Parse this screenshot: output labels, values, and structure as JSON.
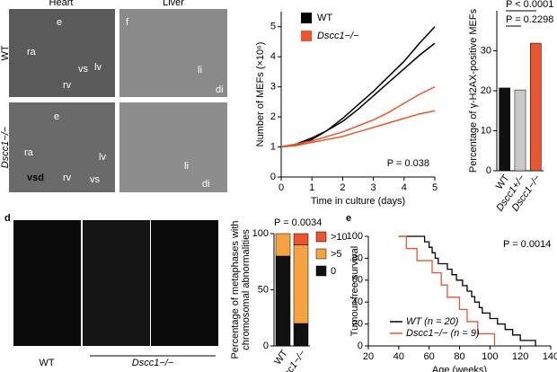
{
  "chart_data": [
    {
      "type": "line",
      "ylabel": "Number of MEFs (×10⁶)",
      "xlabel": "Time in culture (days)",
      "annotation": "P = 0.038",
      "x": [
        0,
        0.5,
        1,
        1.5,
        2,
        2.5,
        3,
        3.5,
        4,
        4.5,
        5
      ],
      "xlim": [
        0,
        5
      ],
      "xticks": [
        0,
        1,
        2,
        3,
        4,
        5
      ],
      "ylim": [
        0,
        5.5
      ],
      "yticks": [
        0,
        1,
        2,
        3,
        4,
        5
      ],
      "series": [
        {
          "name": "WT",
          "color": "#000000",
          "values": [
            1.0,
            1.05,
            1.25,
            1.55,
            1.95,
            2.4,
            2.85,
            3.35,
            3.85,
            4.45,
            5.0
          ]
        },
        {
          "name": "WT",
          "color": "#000000",
          "values": [
            1.0,
            1.1,
            1.3,
            1.55,
            1.85,
            2.25,
            2.7,
            3.15,
            3.6,
            4.05,
            4.45
          ]
        },
        {
          "name": "Dscc1−/−",
          "color": "#e8552e",
          "values": [
            1.0,
            1.1,
            1.2,
            1.35,
            1.5,
            1.7,
            1.9,
            2.15,
            2.45,
            2.75,
            3.0
          ]
        },
        {
          "name": "Dscc1−/−",
          "color": "#e8552e",
          "values": [
            1.0,
            1.05,
            1.15,
            1.25,
            1.35,
            1.5,
            1.65,
            1.8,
            1.95,
            2.1,
            2.2
          ]
        }
      ]
    },
    {
      "type": "bar",
      "ylabel": "Percentage of γ-H2AX-positive MEFs",
      "annotations": [
        "P < 0.0001",
        "P = 0.2298"
      ],
      "categories": [
        "WT",
        "Dscc1+/−",
        "Dscc1−/−"
      ],
      "values": [
        20.7,
        20.2,
        31.9
      ],
      "colors": [
        "#111111",
        "#c8c8c8",
        "#e8552e"
      ],
      "ylim": [
        0,
        40
      ],
      "yticks": [
        0,
        10,
        20,
        30
      ]
    },
    {
      "type": "stacked_bar",
      "ylabel": [
        "Percentage of metaphases with",
        "chromosomal abnormalities"
      ],
      "annotation": "P = 0.0034",
      "categories": [
        "WT",
        "cc1−/−"
      ],
      "ylim": [
        0,
        100
      ],
      "yticks": [
        0,
        50,
        100
      ],
      "series": [
        {
          "name": "0",
          "color": "#111111",
          "values": [
            80,
            20
          ]
        },
        {
          "name": ">5",
          "color": "#f4a340",
          "values": [
            20,
            70
          ]
        },
        {
          "name": ">10",
          "color": "#e8552e",
          "values": [
            0,
            10
          ]
        }
      ]
    },
    {
      "type": "step",
      "ylabel": "Tumour-free survival",
      "xlabel": "Age (weeks)",
      "annotation": "P = 0.0014",
      "xlim": [
        20,
        140
      ],
      "xticks": [
        20,
        40,
        60,
        80,
        100,
        120,
        140
      ],
      "ylim": [
        0,
        100
      ],
      "yticks": [
        0,
        20,
        40,
        60,
        80,
        100
      ],
      "series": [
        {
          "name": "WT (n = 20)",
          "color": "#000000",
          "x": [
            40,
            57,
            60,
            62,
            64,
            66,
            72,
            75,
            78,
            82,
            85,
            88,
            90,
            93,
            95,
            100,
            105,
            110,
            115,
            120,
            130
          ],
          "values": [
            100,
            95,
            90,
            85,
            80,
            75,
            70,
            65,
            60,
            55,
            50,
            45,
            40,
            35,
            30,
            25,
            20,
            15,
            10,
            5,
            0
          ]
        },
        {
          "name": "Dscc1−/− (n = 9)",
          "color": "#e8552e",
          "x": [
            40,
            45,
            52,
            62,
            68,
            72,
            80,
            85,
            92,
            103
          ],
          "values": [
            100,
            88.9,
            77.8,
            66.7,
            55.6,
            44.4,
            33.3,
            22.2,
            11.1,
            0
          ]
        }
      ]
    }
  ],
  "panel_a": {
    "columns": [
      "Heart",
      "Liver"
    ],
    "rows": [
      "WT",
      "Dscc1−/−"
    ],
    "labels": [
      "ra",
      "e",
      "rv",
      "vs",
      "lv",
      "f",
      "li",
      "di",
      "ra",
      "e",
      "rv",
      "vs",
      "lv",
      "vsd",
      "li",
      "di"
    ]
  },
  "panel_d": {
    "letter": "d",
    "captions": [
      "WT",
      "Dscc1−/−"
    ]
  },
  "panel_e": {
    "letter": "e"
  }
}
